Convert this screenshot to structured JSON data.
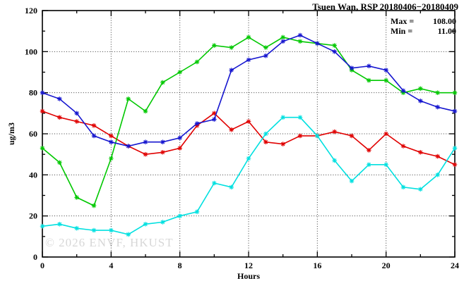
{
  "title": "Tsuen Wan, RSP 20180406−20180409",
  "stats": {
    "max_label": "Max =",
    "max_value": "108.00",
    "min_label": "Min =",
    "min_value": "11.00"
  },
  "watermark": "© 2026 ENVF, HKUST",
  "chart_data": {
    "type": "line",
    "title": "Tsuen Wan, RSP 20180406−20180409",
    "xlabel": "Hours",
    "ylabel": "ug/m3",
    "xlim": [
      0,
      24
    ],
    "ylim": [
      0,
      120
    ],
    "x_major_ticks": [
      0,
      4,
      8,
      12,
      16,
      20,
      24
    ],
    "x_minor_step": 2,
    "y_major_ticks": [
      0,
      20,
      40,
      60,
      80,
      100,
      120
    ],
    "y_minor_step": 10,
    "grid": "dotted-at-major-ticks",
    "legend_position": "top-right-inside",
    "marker": "asterisk",
    "annotations": {
      "max": "108.00",
      "min": "11.00"
    },
    "x": [
      0,
      1,
      2,
      3,
      4,
      5,
      6,
      7,
      8,
      9,
      10,
      11,
      12,
      13,
      14,
      15,
      16,
      17,
      18,
      19,
      20,
      21,
      22,
      23,
      24
    ],
    "series": [
      {
        "name": "red",
        "color": "#e00000",
        "values": [
          71,
          68,
          66,
          64,
          59,
          54,
          50,
          51,
          53,
          64,
          70,
          62,
          66,
          56,
          55,
          59,
          59,
          61,
          59,
          52,
          60,
          54,
          51,
          49,
          45
        ]
      },
      {
        "name": "green",
        "color": "#00c800",
        "values": [
          53,
          46,
          29,
          25,
          48,
          77,
          71,
          85,
          90,
          95,
          103,
          102,
          107,
          102,
          107,
          105,
          104,
          103,
          91,
          86,
          86,
          80,
          82,
          80,
          80
        ]
      },
      {
        "name": "blue",
        "color": "#1515cf",
        "values": [
          80,
          77,
          70,
          59,
          56,
          54,
          56,
          56,
          58,
          65,
          67,
          91,
          96,
          98,
          105,
          108,
          104,
          100,
          92,
          93,
          91,
          81,
          76,
          73,
          71
        ]
      },
      {
        "name": "cyan",
        "color": "#00e0e0",
        "values": [
          15,
          16,
          14,
          13,
          13,
          11,
          16,
          17,
          20,
          22,
          36,
          34,
          48,
          60,
          68,
          68,
          59,
          47,
          37,
          45,
          45,
          34,
          33,
          40,
          53
        ]
      }
    ]
  }
}
